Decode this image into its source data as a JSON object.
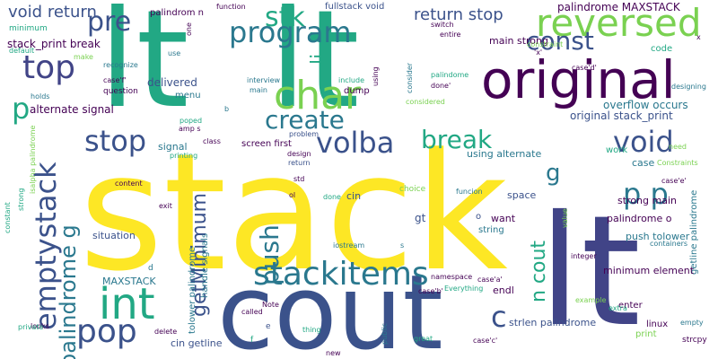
{
  "palette": {
    "yellow": "#fde725",
    "lime": "#7ad151",
    "green": "#22a884",
    "teal": "#2a788e",
    "blue": "#414487",
    "indigo": "#3b528b",
    "purple": "#440154"
  },
  "words": [
    {
      "text": "stack",
      "color": "yellow"
    },
    {
      "text": "lt",
      "color": "green"
    },
    {
      "text": "lt",
      "color": "green"
    },
    {
      "text": "cout",
      "color": "indigo"
    },
    {
      "text": "lt",
      "color": "blue"
    },
    {
      "text": "original",
      "color": "purple"
    },
    {
      "text": "reversed",
      "color": "lime"
    },
    {
      "text": "char",
      "color": "lime"
    },
    {
      "text": "int",
      "color": "green"
    },
    {
      "text": "top",
      "color": "blue"
    },
    {
      "text": "stackitems",
      "color": "teal"
    },
    {
      "text": "pop",
      "color": "indigo"
    },
    {
      "text": "volba",
      "color": "indigo"
    },
    {
      "text": "stop",
      "color": "indigo"
    },
    {
      "text": "void",
      "color": "indigo"
    },
    {
      "text": "program",
      "color": "teal"
    },
    {
      "text": "stk",
      "color": "green"
    },
    {
      "text": "const",
      "color": "indigo"
    },
    {
      "text": "create",
      "color": "teal"
    },
    {
      "text": "break",
      "color": "green"
    },
    {
      "text": "push",
      "color": "teal"
    },
    {
      "text": "p p",
      "color": "teal"
    },
    {
      "text": "c",
      "color": "indigo"
    },
    {
      "text": "p",
      "color": "green"
    },
    {
      "text": "pre",
      "color": "indigo"
    },
    {
      "text": "emptystack",
      "color": "indigo"
    },
    {
      "text": "palindrome g",
      "color": "teal"
    },
    {
      "text": "getMinimum",
      "color": "indigo"
    },
    {
      "text": "n cout",
      "color": "green"
    },
    {
      "text": "void return",
      "color": "indigo"
    },
    {
      "text": "return stop",
      "color": "indigo"
    },
    {
      "text": "g",
      "color": "teal"
    },
    {
      "text": "li",
      "color": "green"
    },
    {
      "text": "palindrome MAXSTACK",
      "color": "purple"
    },
    {
      "text": "stack_print break",
      "color": "purple"
    },
    {
      "text": "alternate signal",
      "color": "purple"
    },
    {
      "text": "palindrom n",
      "color": "purple"
    },
    {
      "text": "fullstack void",
      "color": "indigo"
    },
    {
      "text": "main strong",
      "color": "purple"
    },
    {
      "text": "original stack_print",
      "color": "indigo"
    },
    {
      "text": "overflow occurs",
      "color": "teal"
    },
    {
      "text": "delivered",
      "color": "indigo"
    },
    {
      "text": "using alternate",
      "color": "teal"
    },
    {
      "text": "screen first",
      "color": "purple"
    },
    {
      "text": "strong main",
      "color": "purple"
    },
    {
      "text": "palindrome o",
      "color": "purple"
    },
    {
      "text": "push tolower",
      "color": "teal"
    },
    {
      "text": "getline palindrome",
      "color": "teal"
    },
    {
      "text": "handle signals",
      "color": "teal"
    },
    {
      "text": "tolower palindrome",
      "color": "teal"
    },
    {
      "text": "minimum element",
      "color": "purple"
    },
    {
      "text": "strlen palindrome",
      "color": "indigo"
    },
    {
      "text": "cin getline",
      "color": "indigo"
    },
    {
      "text": "situation",
      "color": "indigo"
    },
    {
      "text": "MAXSTACK",
      "color": "teal"
    },
    {
      "text": "signal",
      "color": "teal"
    },
    {
      "text": "space",
      "color": "indigo"
    },
    {
      "text": "want",
      "color": "purple"
    },
    {
      "text": "string",
      "color": "teal"
    },
    {
      "text": "gt",
      "color": "indigo"
    },
    {
      "text": "cin",
      "color": "indigo"
    },
    {
      "text": "endl",
      "color": "purple"
    },
    {
      "text": "enter",
      "color": "purple"
    },
    {
      "text": "linux",
      "color": "purple"
    },
    {
      "text": "strcpy",
      "color": "purple"
    },
    {
      "text": "print",
      "color": "lime"
    },
    {
      "text": "case",
      "color": "teal"
    },
    {
      "text": "work",
      "color": "green"
    },
    {
      "text": "code",
      "color": "green"
    },
    {
      "text": "dump",
      "color": "purple"
    },
    {
      "text": "menu",
      "color": "teal"
    },
    {
      "text": "question",
      "color": "purple"
    },
    {
      "text": "holds",
      "color": "teal"
    },
    {
      "text": "minimum",
      "color": "green"
    },
    {
      "text": "default",
      "color": "green"
    },
    {
      "text": "recognize",
      "color": "teal"
    },
    {
      "text": "case'f'",
      "color": "purple"
    },
    {
      "text": "interview",
      "color": "teal"
    },
    {
      "text": "main",
      "color": "teal"
    },
    {
      "text": "include",
      "color": "green"
    },
    {
      "text": "std",
      "color": "purple"
    },
    {
      "text": "ol",
      "color": "purple"
    },
    {
      "text": "done",
      "color": "green"
    },
    {
      "text": "return",
      "color": "indigo"
    },
    {
      "text": "design",
      "color": "purple"
    },
    {
      "text": "problem",
      "color": "indigo"
    },
    {
      "text": "class",
      "color": "purple"
    },
    {
      "text": "amp s",
      "color": "purple"
    },
    {
      "text": "poped",
      "color": "green"
    },
    {
      "text": "printing",
      "color": "green"
    },
    {
      "text": "content",
      "color": "purple"
    },
    {
      "text": "exit",
      "color": "purple"
    },
    {
      "text": "d",
      "color": "teal"
    },
    {
      "text": "looks",
      "color": "purple"
    },
    {
      "text": "private",
      "color": "green"
    },
    {
      "text": "delete",
      "color": "purple"
    },
    {
      "text": "called",
      "color": "purple"
    },
    {
      "text": "Note",
      "color": "purple"
    },
    {
      "text": "thing",
      "color": "green"
    },
    {
      "text": "public",
      "color": "teal"
    },
    {
      "text": "new",
      "color": "purple"
    },
    {
      "text": "e",
      "color": "indigo"
    },
    {
      "text": "f",
      "color": "green"
    },
    {
      "text": "great",
      "color": "green"
    },
    {
      "text": "namespace",
      "color": "purple"
    },
    {
      "text": "Everything",
      "color": "green"
    },
    {
      "text": "case'a'",
      "color": "purple"
    },
    {
      "text": "case'b'",
      "color": "purple"
    },
    {
      "text": "case'c'",
      "color": "purple"
    },
    {
      "text": "case'd'",
      "color": "purple"
    },
    {
      "text": "case'e'",
      "color": "purple"
    },
    {
      "text": "integer",
      "color": "purple"
    },
    {
      "text": "containers",
      "color": "teal"
    },
    {
      "text": "extra",
      "color": "green"
    },
    {
      "text": "empty",
      "color": "teal"
    },
    {
      "text": "example",
      "color": "lime"
    },
    {
      "text": "funcion",
      "color": "teal"
    },
    {
      "text": "choice",
      "color": "lime"
    },
    {
      "text": "iostream",
      "color": "teal"
    },
    {
      "text": "value",
      "color": "lime"
    },
    {
      "text": "Constraints",
      "color": "lime"
    },
    {
      "text": "constraint",
      "color": "lime"
    },
    {
      "text": "designing",
      "color": "teal"
    },
    {
      "text": "need",
      "color": "lime"
    },
    {
      "text": "consider",
      "color": "teal"
    },
    {
      "text": "palindome",
      "color": "green"
    },
    {
      "text": "done'",
      "color": "purple"
    },
    {
      "text": "considered",
      "color": "lime"
    },
    {
      "text": "switch",
      "color": "purple"
    },
    {
      "text": "entire",
      "color": "purple"
    },
    {
      "text": "function",
      "color": "purple"
    },
    {
      "text": "one",
      "color": "purple"
    },
    {
      "text": "use",
      "color": "teal"
    },
    {
      "text": "make",
      "color": "lime"
    },
    {
      "text": "b",
      "color": "teal"
    },
    {
      "text": "s",
      "color": "teal"
    },
    {
      "text": "o",
      "color": "indigo"
    },
    {
      "text": "x",
      "color": "purple"
    },
    {
      "text": "constant",
      "color": "green"
    },
    {
      "text": "strong",
      "color": "green"
    },
    {
      "text": "isalpha palindrome",
      "color": "lime"
    },
    {
      "text": "using",
      "color": "purple"
    },
    {
      "text": "'x'",
      "color": "purple"
    }
  ]
}
